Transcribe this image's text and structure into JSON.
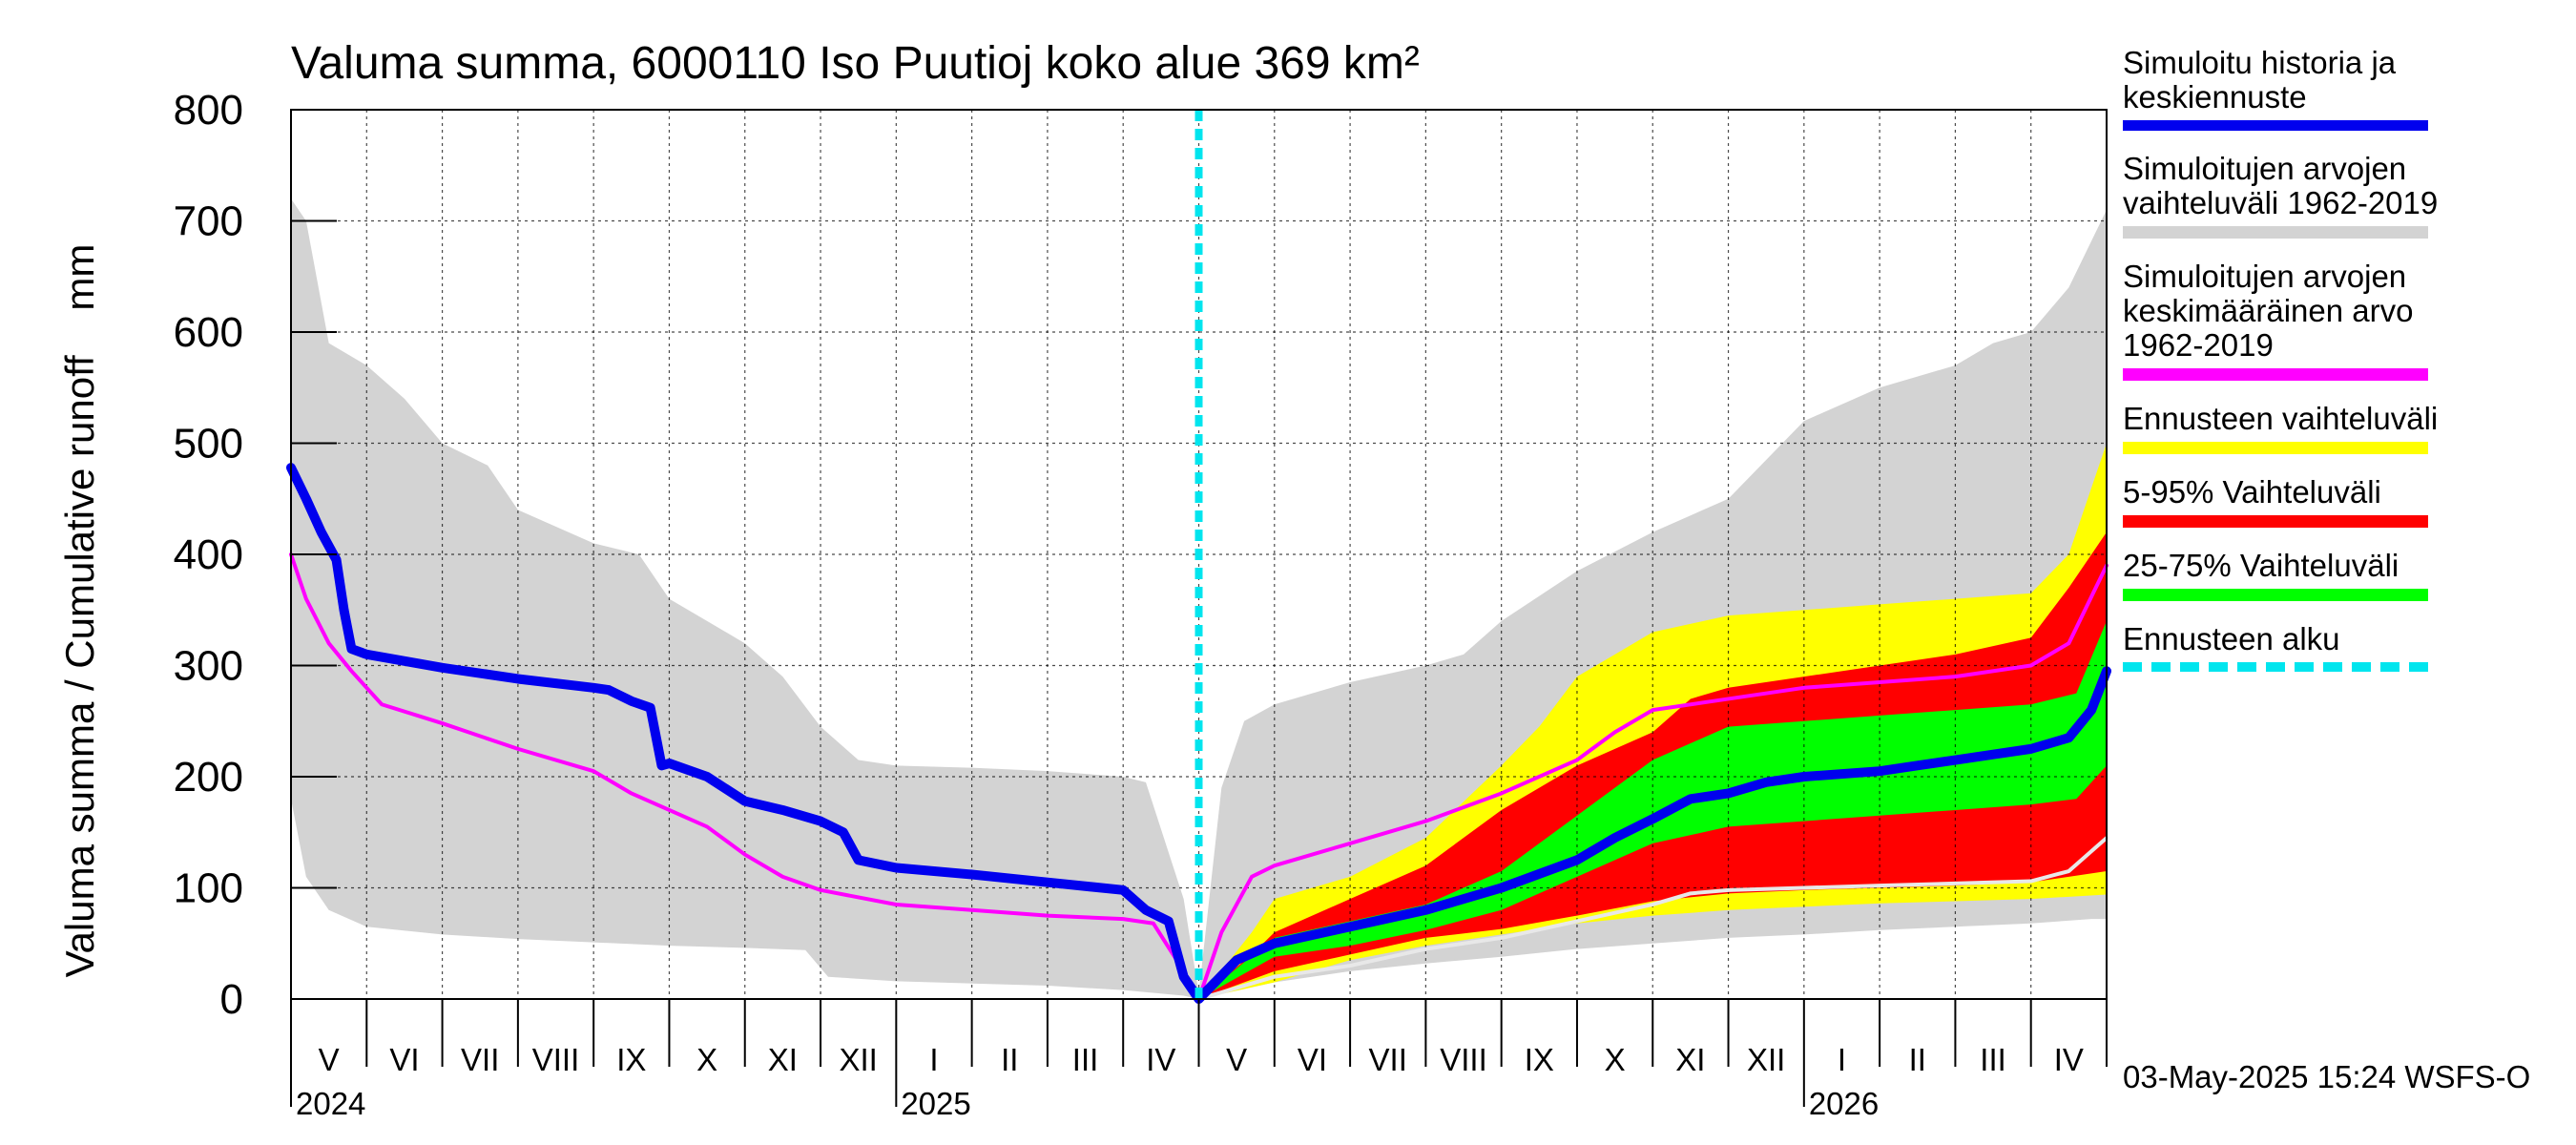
{
  "chart_data": {
    "type": "area",
    "title": "Valuma summa, 6000110 Iso Puutioj koko alue 369 km²",
    "ylabel": "Valuma summa / Cumulative runoff    mm",
    "ylim": [
      0,
      800
    ],
    "yticks": [
      0,
      100,
      200,
      300,
      400,
      500,
      600,
      700,
      800
    ],
    "xlim_month_index": [
      0,
      24
    ],
    "forecast_start": 12,
    "month_labels": [
      "V",
      "VI",
      "VII",
      "VIII",
      "IX",
      "X",
      "XI",
      "XII",
      "I",
      "II",
      "III",
      "IV",
      "V",
      "VI",
      "VII",
      "VIII",
      "IX",
      "X",
      "XI",
      "XII",
      "I",
      "II",
      "III",
      "IV"
    ],
    "year_labels": [
      {
        "text": "2024",
        "at": 0
      },
      {
        "text": "2025",
        "at": 8
      },
      {
        "text": "2026",
        "at": 20
      }
    ],
    "colors": {
      "history": "#0000ee",
      "range": "#d3d3d3",
      "mean": "#ff00ff",
      "forecast_range": "#ffff00",
      "p5_95": "#ff0000",
      "p25_75": "#00ff00",
      "forecast_start": "#00e5ee"
    },
    "series": [
      {
        "name": "range_low",
        "points": [
          [
            0,
            180
          ],
          [
            0.2,
            110
          ],
          [
            0.5,
            80
          ],
          [
            1,
            65
          ],
          [
            2,
            58
          ],
          [
            3,
            54
          ],
          [
            4,
            51
          ],
          [
            5,
            48
          ],
          [
            6,
            46
          ],
          [
            6.8,
            44
          ],
          [
            7.1,
            20
          ],
          [
            8,
            16
          ],
          [
            9,
            14
          ],
          [
            10,
            12
          ],
          [
            11,
            8
          ],
          [
            11.8,
            3
          ],
          [
            12,
            0
          ],
          [
            13,
            15
          ],
          [
            14,
            25
          ],
          [
            15,
            32
          ],
          [
            16,
            38
          ],
          [
            17,
            45
          ],
          [
            18,
            50
          ],
          [
            19,
            55
          ],
          [
            20,
            58
          ],
          [
            21,
            62
          ],
          [
            22,
            65
          ],
          [
            23,
            68
          ],
          [
            23.8,
            72
          ],
          [
            24,
            72
          ]
        ]
      },
      {
        "name": "range_high",
        "points": [
          [
            0,
            720
          ],
          [
            0.2,
            700
          ],
          [
            0.5,
            590
          ],
          [
            1,
            570
          ],
          [
            1.5,
            540
          ],
          [
            2,
            500
          ],
          [
            2.6,
            480
          ],
          [
            3,
            440
          ],
          [
            4,
            410
          ],
          [
            4.6,
            400
          ],
          [
            5,
            360
          ],
          [
            5.5,
            340
          ],
          [
            6,
            320
          ],
          [
            6.5,
            290
          ],
          [
            7,
            245
          ],
          [
            7.5,
            215
          ],
          [
            8,
            210
          ],
          [
            9,
            208
          ],
          [
            10,
            205
          ],
          [
            11,
            200
          ],
          [
            11.3,
            195
          ],
          [
            11.8,
            90
          ],
          [
            12,
            5
          ],
          [
            12.3,
            190
          ],
          [
            12.6,
            250
          ],
          [
            13,
            265
          ],
          [
            14,
            285
          ],
          [
            15,
            300
          ],
          [
            15.5,
            310
          ],
          [
            16,
            340
          ],
          [
            17,
            385
          ],
          [
            18,
            420
          ],
          [
            19,
            450
          ],
          [
            20,
            520
          ],
          [
            21,
            550
          ],
          [
            22,
            570
          ],
          [
            22.5,
            590
          ],
          [
            23,
            600
          ],
          [
            23.5,
            640
          ],
          [
            24,
            710
          ]
        ]
      },
      {
        "name": "Ennusteen vaihteluväli low",
        "points": [
          [
            12,
            0
          ],
          [
            13,
            15
          ],
          [
            14,
            35
          ],
          [
            15,
            48
          ],
          [
            16,
            58
          ],
          [
            17,
            68
          ],
          [
            18,
            75
          ],
          [
            19,
            80
          ],
          [
            20,
            83
          ],
          [
            21,
            86
          ],
          [
            22,
            88
          ],
          [
            23,
            90
          ],
          [
            23.5,
            92
          ],
          [
            24,
            94
          ]
        ]
      },
      {
        "name": "Ennusteen vaihteluväli high",
        "points": [
          [
            12,
            0
          ],
          [
            12.7,
            60
          ],
          [
            13,
            90
          ],
          [
            14,
            110
          ],
          [
            15,
            145
          ],
          [
            16,
            210
          ],
          [
            16.5,
            245
          ],
          [
            17,
            290
          ],
          [
            17.5,
            310
          ],
          [
            18,
            330
          ],
          [
            19,
            345
          ],
          [
            20,
            350
          ],
          [
            21,
            355
          ],
          [
            22,
            360
          ],
          [
            23,
            365
          ],
          [
            23.5,
            400
          ],
          [
            24,
            500
          ]
        ]
      },
      {
        "name": "5-95% low",
        "points": [
          [
            12,
            0
          ],
          [
            13,
            25
          ],
          [
            14,
            40
          ],
          [
            15,
            55
          ],
          [
            16,
            63
          ],
          [
            17,
            75
          ],
          [
            18,
            88
          ],
          [
            19,
            95
          ],
          [
            20,
            98
          ],
          [
            21,
            100
          ],
          [
            22,
            102
          ],
          [
            23,
            105
          ],
          [
            23.5,
            110
          ],
          [
            24,
            115
          ]
        ]
      },
      {
        "name": "5-95% high",
        "points": [
          [
            12,
            0
          ],
          [
            12.7,
            40
          ],
          [
            13,
            60
          ],
          [
            14,
            90
          ],
          [
            15,
            120
          ],
          [
            16,
            170
          ],
          [
            17,
            210
          ],
          [
            18,
            240
          ],
          [
            18.5,
            270
          ],
          [
            19,
            280
          ],
          [
            20,
            290
          ],
          [
            21,
            300
          ],
          [
            22,
            310
          ],
          [
            23,
            325
          ],
          [
            23.5,
            370
          ],
          [
            24,
            420
          ]
        ]
      },
      {
        "name": "25-75% low",
        "points": [
          [
            12,
            0
          ],
          [
            13,
            38
          ],
          [
            14,
            48
          ],
          [
            15,
            62
          ],
          [
            16,
            80
          ],
          [
            17,
            110
          ],
          [
            18,
            140
          ],
          [
            19,
            155
          ],
          [
            20,
            160
          ],
          [
            21,
            165
          ],
          [
            22,
            170
          ],
          [
            23,
            175
          ],
          [
            23.6,
            180
          ],
          [
            24,
            210
          ]
        ]
      },
      {
        "name": "25-75% high",
        "points": [
          [
            12,
            0
          ],
          [
            13,
            55
          ],
          [
            14,
            70
          ],
          [
            15,
            85
          ],
          [
            16,
            115
          ],
          [
            17,
            165
          ],
          [
            18,
            215
          ],
          [
            19,
            245
          ],
          [
            20,
            250
          ],
          [
            21,
            255
          ],
          [
            22,
            260
          ],
          [
            23,
            265
          ],
          [
            23.6,
            275
          ],
          [
            24,
            340
          ]
        ]
      },
      {
        "name": "Simuloitu historia ja keskiennuste",
        "points": [
          [
            0,
            478
          ],
          [
            0.2,
            450
          ],
          [
            0.4,
            420
          ],
          [
            0.6,
            395
          ],
          [
            0.7,
            350
          ],
          [
            0.8,
            315
          ],
          [
            1,
            310
          ],
          [
            2,
            298
          ],
          [
            3,
            288
          ],
          [
            4,
            280
          ],
          [
            4.2,
            278
          ],
          [
            4.5,
            268
          ],
          [
            4.75,
            262
          ],
          [
            4.9,
            210
          ],
          [
            5,
            212
          ],
          [
            5.5,
            200
          ],
          [
            6,
            178
          ],
          [
            6.5,
            170
          ],
          [
            7,
            160
          ],
          [
            7.3,
            150
          ],
          [
            7.5,
            125
          ],
          [
            8,
            118
          ],
          [
            9,
            112
          ],
          [
            10,
            105
          ],
          [
            11,
            98
          ],
          [
            11.3,
            80
          ],
          [
            11.6,
            70
          ],
          [
            11.8,
            20
          ],
          [
            12,
            0
          ],
          [
            12.5,
            35
          ],
          [
            13,
            50
          ],
          [
            14,
            65
          ],
          [
            15,
            80
          ],
          [
            16,
            100
          ],
          [
            17,
            125
          ],
          [
            17.5,
            145
          ],
          [
            18,
            162
          ],
          [
            18.5,
            180
          ],
          [
            19,
            185
          ],
          [
            19.5,
            195
          ],
          [
            20,
            200
          ],
          [
            21,
            205
          ],
          [
            21.5,
            210
          ],
          [
            22,
            215
          ],
          [
            22.5,
            220
          ],
          [
            23,
            225
          ],
          [
            23.5,
            235
          ],
          [
            23.8,
            260
          ],
          [
            24,
            295
          ]
        ]
      },
      {
        "name": "Simuloitujen arvojen keskimääräinen arvo 1962-2019",
        "points": [
          [
            0,
            400
          ],
          [
            0.2,
            360
          ],
          [
            0.5,
            320
          ],
          [
            0.8,
            295
          ],
          [
            1,
            280
          ],
          [
            1.2,
            265
          ],
          [
            2,
            248
          ],
          [
            3,
            225
          ],
          [
            4,
            205
          ],
          [
            4.5,
            185
          ],
          [
            5,
            170
          ],
          [
            5.5,
            155
          ],
          [
            6,
            130
          ],
          [
            6.5,
            110
          ],
          [
            7,
            98
          ],
          [
            8,
            85
          ],
          [
            9,
            80
          ],
          [
            10,
            75
          ],
          [
            11,
            72
          ],
          [
            11.4,
            68
          ],
          [
            11.8,
            25
          ],
          [
            12,
            0
          ],
          [
            12.3,
            60
          ],
          [
            12.7,
            110
          ],
          [
            13,
            120
          ],
          [
            14,
            140
          ],
          [
            15,
            160
          ],
          [
            16,
            185
          ],
          [
            17,
            215
          ],
          [
            17.5,
            240
          ],
          [
            18,
            260
          ],
          [
            19,
            270
          ],
          [
            20,
            280
          ],
          [
            21,
            285
          ],
          [
            22,
            290
          ],
          [
            23,
            300
          ],
          [
            23.5,
            320
          ],
          [
            24,
            390
          ]
        ]
      },
      {
        "name": "forecast_low_white",
        "points": [
          [
            12,
            0
          ],
          [
            13,
            20
          ],
          [
            14,
            30
          ],
          [
            15,
            45
          ],
          [
            16,
            55
          ],
          [
            17,
            70
          ],
          [
            18,
            85
          ],
          [
            18.5,
            95
          ],
          [
            19,
            98
          ],
          [
            20,
            100
          ],
          [
            21,
            102
          ],
          [
            22,
            104
          ],
          [
            23,
            106
          ],
          [
            23.5,
            115
          ],
          [
            24,
            145
          ]
        ]
      }
    ]
  },
  "legend": {
    "items": [
      {
        "label": "Simuloitu historia ja\nkeskiennuste",
        "color": "#0000ee"
      },
      {
        "label": "Simuloitujen arvojen\nvaihteluväli 1962-2019",
        "color": "#d3d3d3"
      },
      {
        "label": "Simuloitujen arvojen\nkeskimääräinen arvo\n    1962-2019",
        "color": "#ff00ff"
      },
      {
        "label": "Ennusteen vaihteluväli",
        "color": "#ffff00"
      },
      {
        "label": "5-95% Vaihteluväli",
        "color": "#ff0000"
      },
      {
        "label": "25-75% Vaihteluväli",
        "color": "#00ff00"
      },
      {
        "label": "Ennusteen alku",
        "color": "#00e5ee"
      }
    ]
  },
  "footer": {
    "timestamp": "03-May-2025 15:24 WSFS-O"
  }
}
